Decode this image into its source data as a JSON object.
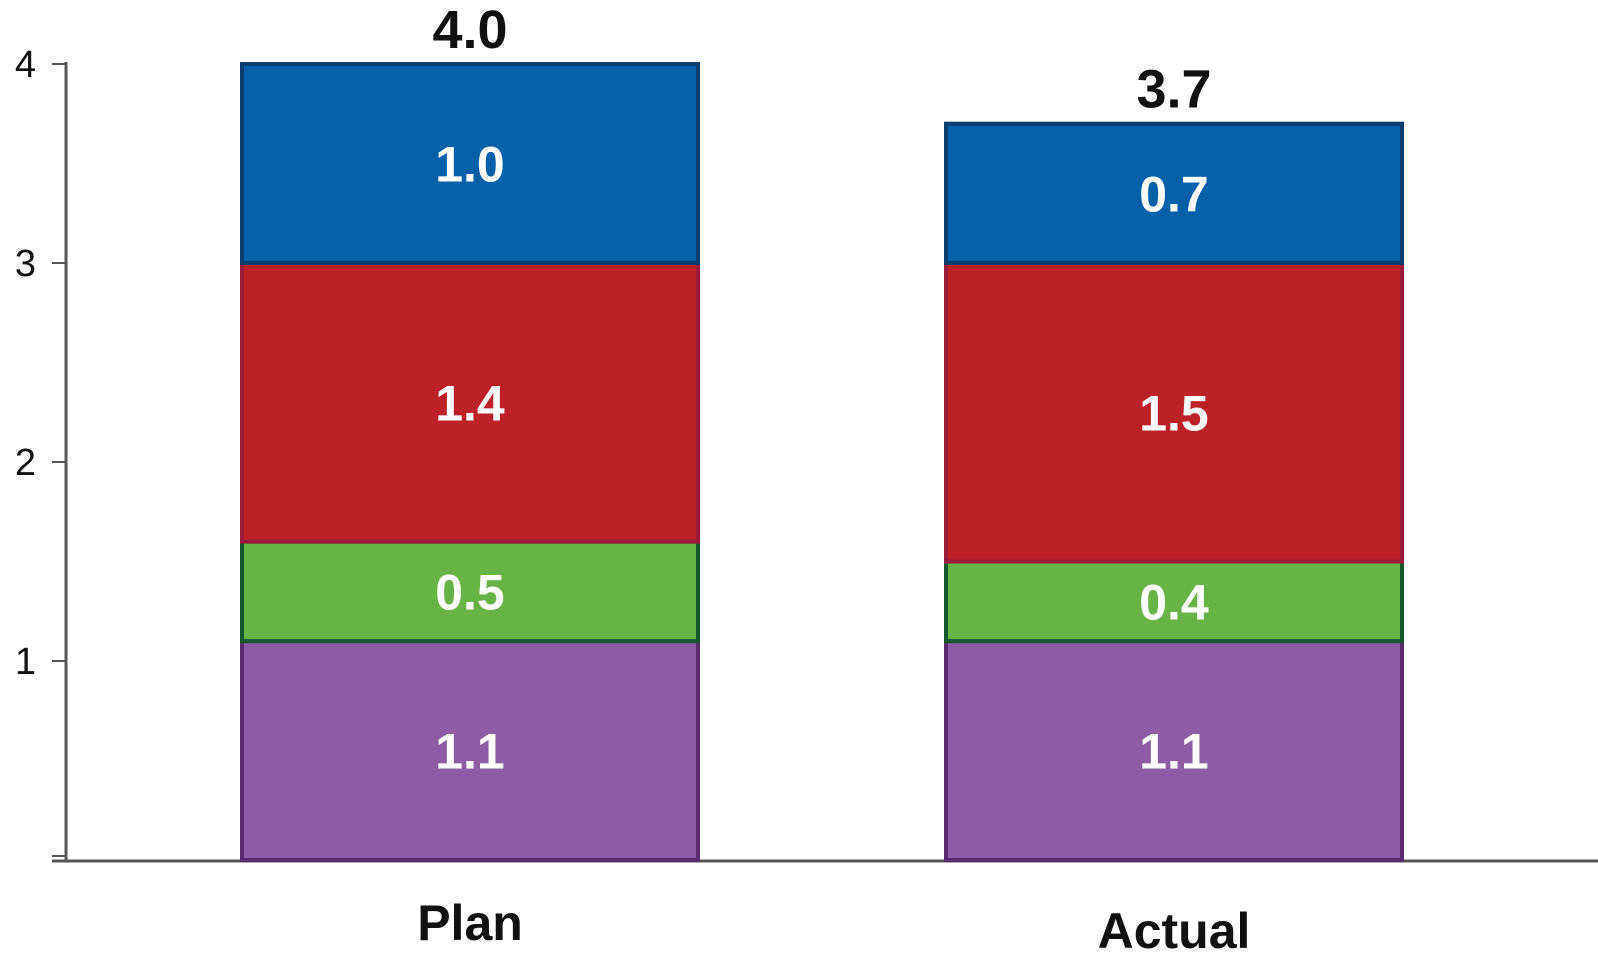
{
  "chart_data": {
    "type": "bar",
    "stacked": true,
    "categories": [
      "Plan",
      "Actual"
    ],
    "series": [
      {
        "values": [
          1.1,
          1.1
        ],
        "labels": [
          "1.1",
          "1.1"
        ],
        "color": "#8e5ba5",
        "border": "#5c2a6e"
      },
      {
        "values": [
          0.5,
          0.4
        ],
        "labels": [
          "0.5",
          "0.4"
        ],
        "color": "#67b346",
        "border": "#15582e"
      },
      {
        "values": [
          1.4,
          1.5
        ],
        "labels": [
          "1.4",
          "1.5"
        ],
        "color": "#bb2126",
        "border": "#9a1b3a"
      },
      {
        "values": [
          1.0,
          0.7
        ],
        "labels": [
          "1.0",
          "0.7"
        ],
        "color": "#0660a8",
        "border": "#0c3d6d"
      }
    ],
    "totals": [
      "4.0",
      "3.7"
    ],
    "ylim": [
      0,
      4
    ],
    "yticks": [
      1,
      2,
      3,
      4
    ],
    "ytick_labels": [
      "1",
      "2",
      "3",
      "4"
    ],
    "title": "",
    "xlabel": "",
    "ylabel": "",
    "grid": false,
    "legend": "none",
    "axis_color": "#555555"
  }
}
